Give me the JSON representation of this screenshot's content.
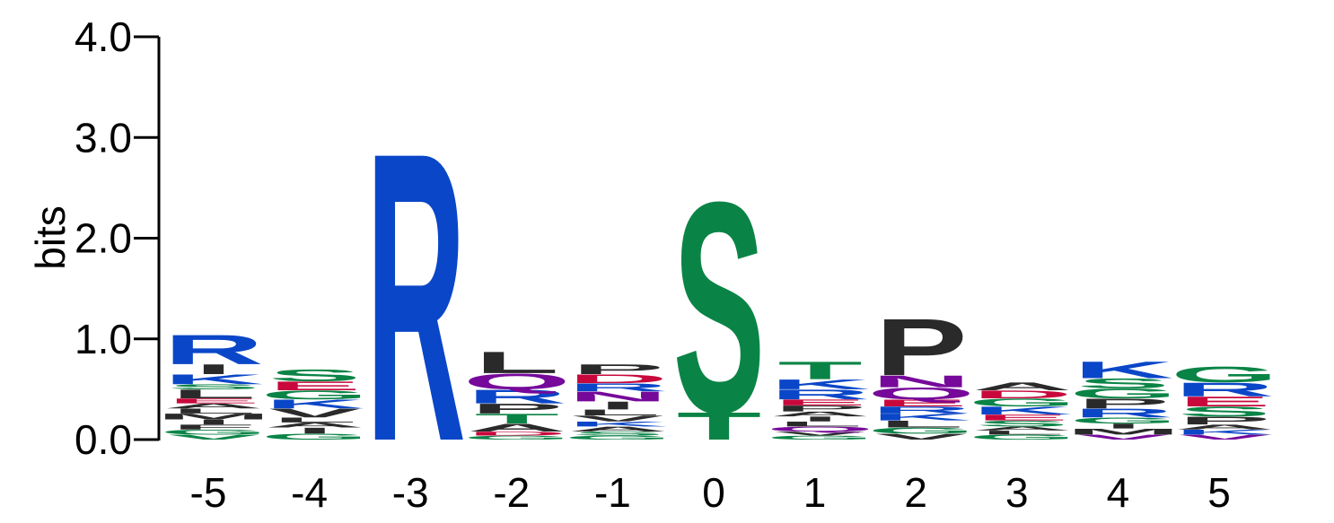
{
  "chart_data": {
    "type": "sequence-logo",
    "ylabel": "bits",
    "ylim": [
      0,
      4
    ],
    "y_ticks": [
      "0.0",
      "1.0",
      "2.0",
      "3.0",
      "4.0"
    ],
    "colors": {
      "basic": "#0a46c8",
      "polar": "#0a8446",
      "hydrophobic": "#2a2a2a",
      "acidic": "#c8083c",
      "amide": "#76089a"
    },
    "positions": [
      {
        "label": "-5",
        "stack": [
          {
            "aa": "V",
            "height": 0.05,
            "group": "polar"
          },
          {
            "aa": "G",
            "height": 0.05,
            "group": "polar"
          },
          {
            "aa": "F",
            "height": 0.05,
            "group": "hydrophobic"
          },
          {
            "aa": "I",
            "height": 0.05,
            "group": "hydrophobic"
          },
          {
            "aa": "M",
            "height": 0.06,
            "group": "hydrophobic"
          },
          {
            "aa": "L",
            "height": 0.05,
            "group": "hydrophobic"
          },
          {
            "aa": "A",
            "height": 0.05,
            "group": "hydrophobic"
          },
          {
            "aa": "E",
            "height": 0.05,
            "group": "acidic"
          },
          {
            "aa": "L",
            "height": 0.09,
            "group": "hydrophobic"
          },
          {
            "aa": "S",
            "height": 0.05,
            "group": "polar"
          },
          {
            "aa": "K",
            "height": 0.1,
            "group": "basic"
          },
          {
            "aa": "I",
            "height": 0.1,
            "group": "hydrophobic"
          },
          {
            "aa": "R",
            "height": 0.3,
            "group": "basic"
          }
        ]
      },
      {
        "label": "-4",
        "stack": [
          {
            "aa": "G",
            "height": 0.06,
            "group": "polar"
          },
          {
            "aa": "I",
            "height": 0.06,
            "group": "hydrophobic"
          },
          {
            "aa": "A",
            "height": 0.05,
            "group": "hydrophobic"
          },
          {
            "aa": "L",
            "height": 0.05,
            "group": "hydrophobic"
          },
          {
            "aa": "V",
            "height": 0.09,
            "group": "hydrophobic"
          },
          {
            "aa": "K",
            "height": 0.09,
            "group": "basic"
          },
          {
            "aa": "G",
            "height": 0.09,
            "group": "polar"
          },
          {
            "aa": "E",
            "height": 0.09,
            "group": "acidic"
          },
          {
            "aa": "S",
            "height": 0.12,
            "group": "polar"
          }
        ]
      },
      {
        "label": "-3",
        "stack": [
          {
            "aa": "R",
            "height": 2.95,
            "group": "basic"
          }
        ]
      },
      {
        "label": "-2",
        "stack": [
          {
            "aa": "G",
            "height": 0.04,
            "group": "polar"
          },
          {
            "aa": "D",
            "height": 0.04,
            "group": "acidic"
          },
          {
            "aa": "A",
            "height": 0.08,
            "group": "hydrophobic"
          },
          {
            "aa": "T",
            "height": 0.1,
            "group": "polar"
          },
          {
            "aa": "P",
            "height": 0.1,
            "group": "hydrophobic"
          },
          {
            "aa": "R",
            "height": 0.14,
            "group": "basic"
          },
          {
            "aa": "Q",
            "height": 0.16,
            "group": "amide"
          },
          {
            "aa": "L",
            "height": 0.22,
            "group": "hydrophobic"
          }
        ]
      },
      {
        "label": "-1",
        "stack": [
          {
            "aa": "G",
            "height": 0.04,
            "group": "polar"
          },
          {
            "aa": "S",
            "height": 0.04,
            "group": "polar"
          },
          {
            "aa": "A",
            "height": 0.05,
            "group": "hydrophobic"
          },
          {
            "aa": "K",
            "height": 0.05,
            "group": "basic"
          },
          {
            "aa": "V",
            "height": 0.06,
            "group": "hydrophobic"
          },
          {
            "aa": "L",
            "height": 0.06,
            "group": "hydrophobic"
          },
          {
            "aa": "I",
            "height": 0.08,
            "group": "hydrophobic"
          },
          {
            "aa": "N",
            "height": 0.1,
            "group": "amide"
          },
          {
            "aa": "R",
            "height": 0.08,
            "group": "basic"
          },
          {
            "aa": "D",
            "height": 0.09,
            "group": "acidic"
          },
          {
            "aa": "P",
            "height": 0.1,
            "group": "hydrophobic"
          }
        ]
      },
      {
        "label": "0",
        "stack": [
          {
            "aa": "T",
            "height": 0.28,
            "group": "polar"
          },
          {
            "aa": "S",
            "height": 2.15,
            "group": "polar"
          }
        ]
      },
      {
        "label": "1",
        "stack": [
          {
            "aa": "G",
            "height": 0.04,
            "group": "polar"
          },
          {
            "aa": "V",
            "height": 0.04,
            "group": "hydrophobic"
          },
          {
            "aa": "Q",
            "height": 0.05,
            "group": "amide"
          },
          {
            "aa": "L",
            "height": 0.05,
            "group": "hydrophobic"
          },
          {
            "aa": "I",
            "height": 0.05,
            "group": "hydrophobic"
          },
          {
            "aa": "A",
            "height": 0.05,
            "group": "hydrophobic"
          },
          {
            "aa": "P",
            "height": 0.06,
            "group": "hydrophobic"
          },
          {
            "aa": "E",
            "height": 0.06,
            "group": "acidic"
          },
          {
            "aa": "R",
            "height": 0.1,
            "group": "basic"
          },
          {
            "aa": "K",
            "height": 0.1,
            "group": "basic"
          },
          {
            "aa": "T",
            "height": 0.18,
            "group": "polar"
          }
        ]
      },
      {
        "label": "2",
        "stack": [
          {
            "aa": "V",
            "height": 0.06,
            "group": "hydrophobic"
          },
          {
            "aa": "G",
            "height": 0.06,
            "group": "polar"
          },
          {
            "aa": "L",
            "height": 0.07,
            "group": "hydrophobic"
          },
          {
            "aa": "K",
            "height": 0.07,
            "group": "basic"
          },
          {
            "aa": "R",
            "height": 0.07,
            "group": "basic"
          },
          {
            "aa": "E",
            "height": 0.07,
            "group": "acidic"
          },
          {
            "aa": "Q",
            "height": 0.12,
            "group": "amide"
          },
          {
            "aa": "N",
            "height": 0.12,
            "group": "amide"
          },
          {
            "aa": "P",
            "height": 0.58,
            "group": "hydrophobic"
          }
        ]
      },
      {
        "label": "3",
        "stack": [
          {
            "aa": "G",
            "height": 0.05,
            "group": "polar"
          },
          {
            "aa": "L",
            "height": 0.04,
            "group": "hydrophobic"
          },
          {
            "aa": "A",
            "height": 0.04,
            "group": "hydrophobic"
          },
          {
            "aa": "S",
            "height": 0.06,
            "group": "polar"
          },
          {
            "aa": "E",
            "height": 0.06,
            "group": "acidic"
          },
          {
            "aa": "K",
            "height": 0.08,
            "group": "basic"
          },
          {
            "aa": "G",
            "height": 0.08,
            "group": "polar"
          },
          {
            "aa": "D",
            "height": 0.08,
            "group": "acidic"
          },
          {
            "aa": "A",
            "height": 0.08,
            "group": "hydrophobic"
          }
        ]
      },
      {
        "label": "4",
        "stack": [
          {
            "aa": "V",
            "height": 0.05,
            "group": "amide"
          },
          {
            "aa": "M",
            "height": 0.06,
            "group": "hydrophobic"
          },
          {
            "aa": "I",
            "height": 0.05,
            "group": "hydrophobic"
          },
          {
            "aa": "G",
            "height": 0.06,
            "group": "polar"
          },
          {
            "aa": "R",
            "height": 0.09,
            "group": "basic"
          },
          {
            "aa": "P",
            "height": 0.1,
            "group": "hydrophobic"
          },
          {
            "aa": "G",
            "height": 0.1,
            "group": "polar"
          },
          {
            "aa": "S",
            "height": 0.1,
            "group": "polar"
          },
          {
            "aa": "K",
            "height": 0.17,
            "group": "basic"
          }
        ]
      },
      {
        "label": "5",
        "stack": [
          {
            "aa": "V",
            "height": 0.05,
            "group": "amide"
          },
          {
            "aa": "K",
            "height": 0.05,
            "group": "basic"
          },
          {
            "aa": "A",
            "height": 0.05,
            "group": "hydrophobic"
          },
          {
            "aa": "P",
            "height": 0.08,
            "group": "hydrophobic"
          },
          {
            "aa": "S",
            "height": 0.1,
            "group": "polar"
          },
          {
            "aa": "E",
            "height": 0.1,
            "group": "acidic"
          },
          {
            "aa": "R",
            "height": 0.14,
            "group": "basic"
          },
          {
            "aa": "G",
            "height": 0.16,
            "group": "polar"
          }
        ]
      }
    ]
  }
}
